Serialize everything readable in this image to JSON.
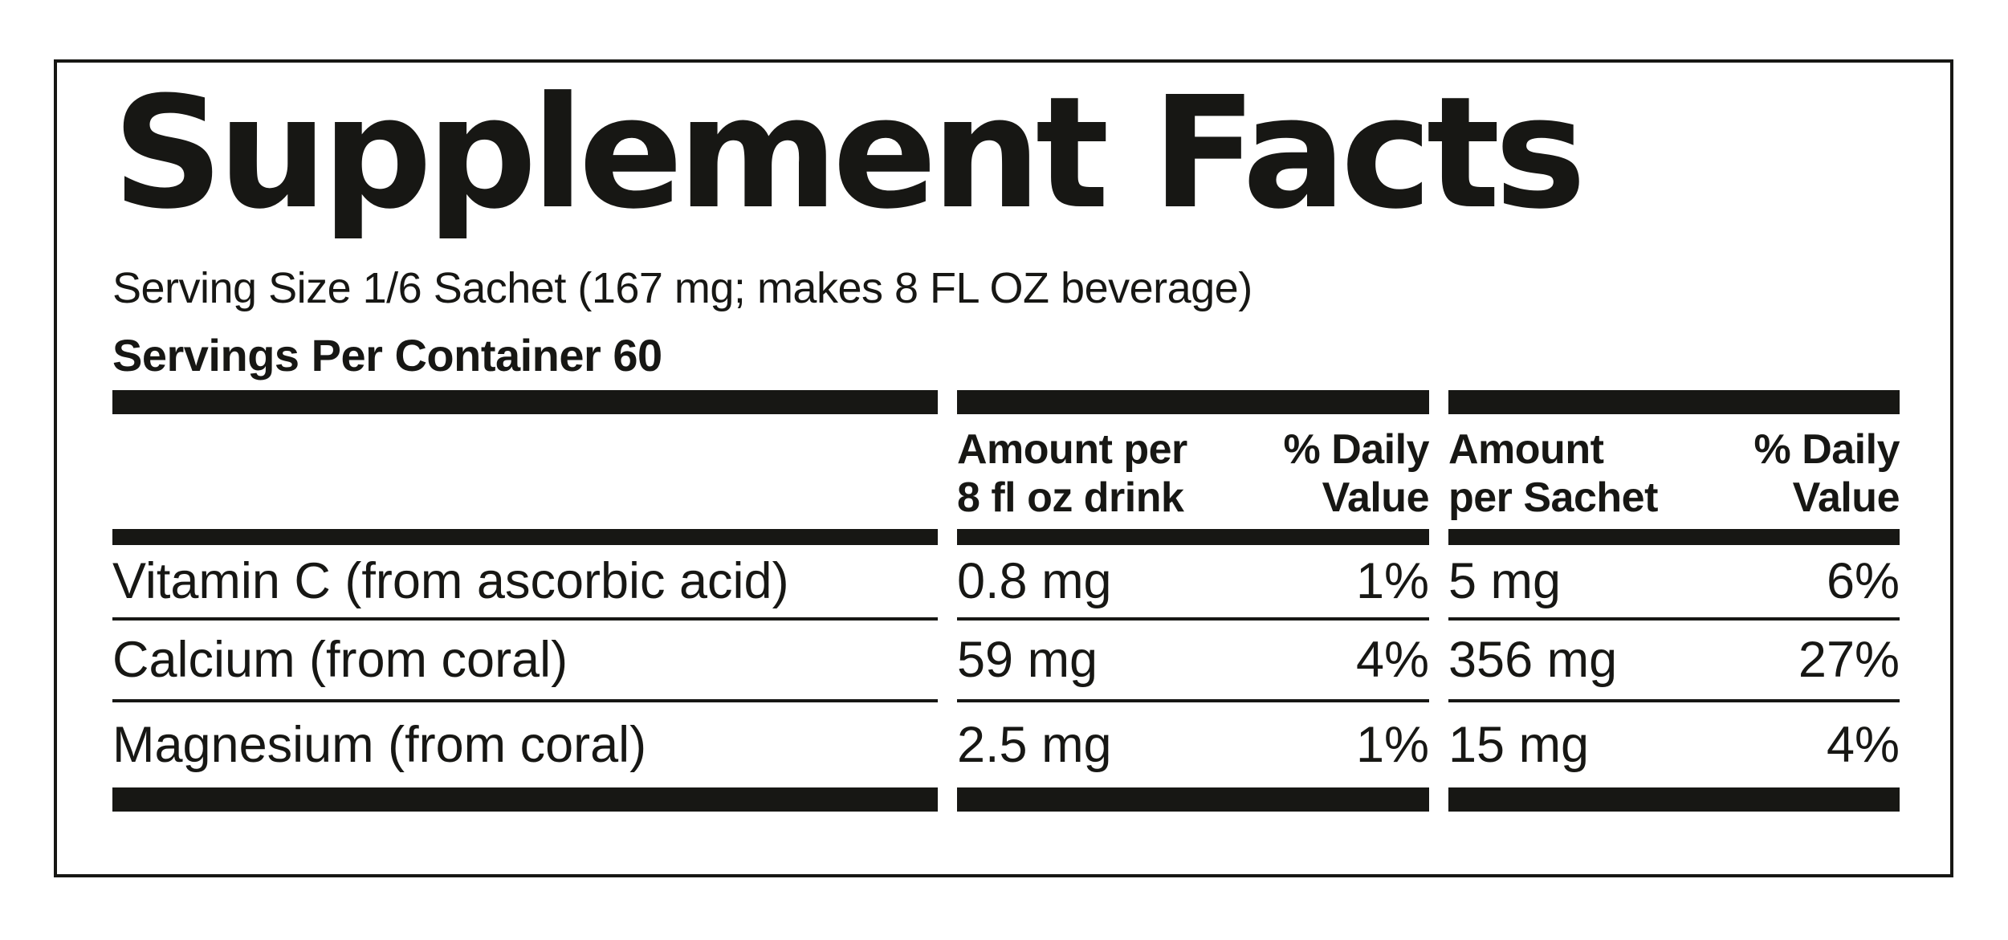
{
  "label": {
    "title": "Supplement Facts",
    "serving_size": "Serving Size 1/6 Sachet (167 mg; makes 8 FL OZ beverage)",
    "servings_per_container": "Servings Per Container 60"
  },
  "table": {
    "columns": [
      {
        "line1": "Amount per",
        "line2": "8 fl oz drink"
      },
      {
        "line1": "% Daily",
        "line2": "Value"
      },
      {
        "line1": "Amount",
        "line2": "per Sachet"
      },
      {
        "line1": "% Daily",
        "line2": "Value"
      }
    ],
    "rows": [
      {
        "name": "Vitamin C (from ascorbic acid)",
        "amount_per_drink": "0.8 mg",
        "dv_per_drink": "1%",
        "amount_per_sachet": "5 mg",
        "dv_per_sachet": "6%"
      },
      {
        "name": "Calcium (from coral)",
        "amount_per_drink": "59 mg",
        "dv_per_drink": "4%",
        "amount_per_sachet": "356 mg",
        "dv_per_sachet": "27%"
      },
      {
        "name": "Magnesium (from coral)",
        "amount_per_drink": "2.5 mg",
        "dv_per_drink": "1%",
        "amount_per_sachet": "15 mg",
        "dv_per_sachet": "4%"
      }
    ]
  },
  "colors": {
    "ink": "#171714",
    "background": "#ffffff"
  }
}
